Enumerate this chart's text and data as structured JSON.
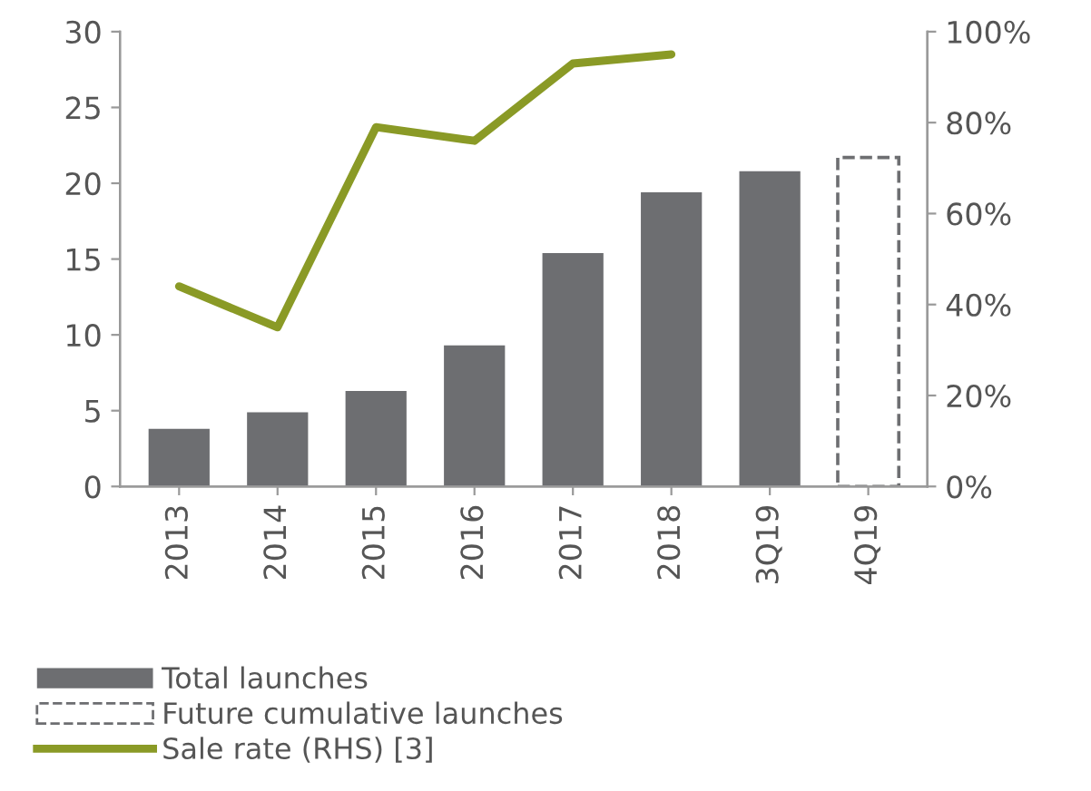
{
  "chart_data": {
    "type": "bar",
    "categories": [
      "2013",
      "2014",
      "2015",
      "2016",
      "2017",
      "2018",
      "3Q19",
      "4Q19"
    ],
    "series": [
      {
        "name": "Total launches",
        "color": "#6d6e71",
        "values": [
          3.8,
          4.9,
          6.3,
          9.3,
          15.4,
          19.4,
          20.8,
          null
        ]
      },
      {
        "name": "Future cumulative launches",
        "color": "#6d6e71",
        "line_style": "dashed",
        "values": [
          null,
          null,
          null,
          null,
          null,
          null,
          null,
          21.7
        ]
      },
      {
        "name": "Sale rate (RHS) [3]",
        "type": "line",
        "axis": "y2",
        "color": "#8a9a26",
        "values": [
          44,
          35,
          79,
          76,
          93,
          95,
          null,
          null
        ]
      }
    ],
    "ylim": [
      0,
      30
    ],
    "yticks": [
      0,
      5,
      10,
      15,
      20,
      25,
      30
    ],
    "y2lim": [
      0,
      100
    ],
    "y2ticks": [
      {
        "value": 0,
        "label": "0%"
      },
      {
        "value": 20,
        "label": "20%"
      },
      {
        "value": 40,
        "label": "40%"
      },
      {
        "value": 60,
        "label": "60%"
      },
      {
        "value": 80,
        "label": "80%"
      },
      {
        "value": 100,
        "label": "100%"
      }
    ],
    "legend": "bottom",
    "grid": false
  }
}
